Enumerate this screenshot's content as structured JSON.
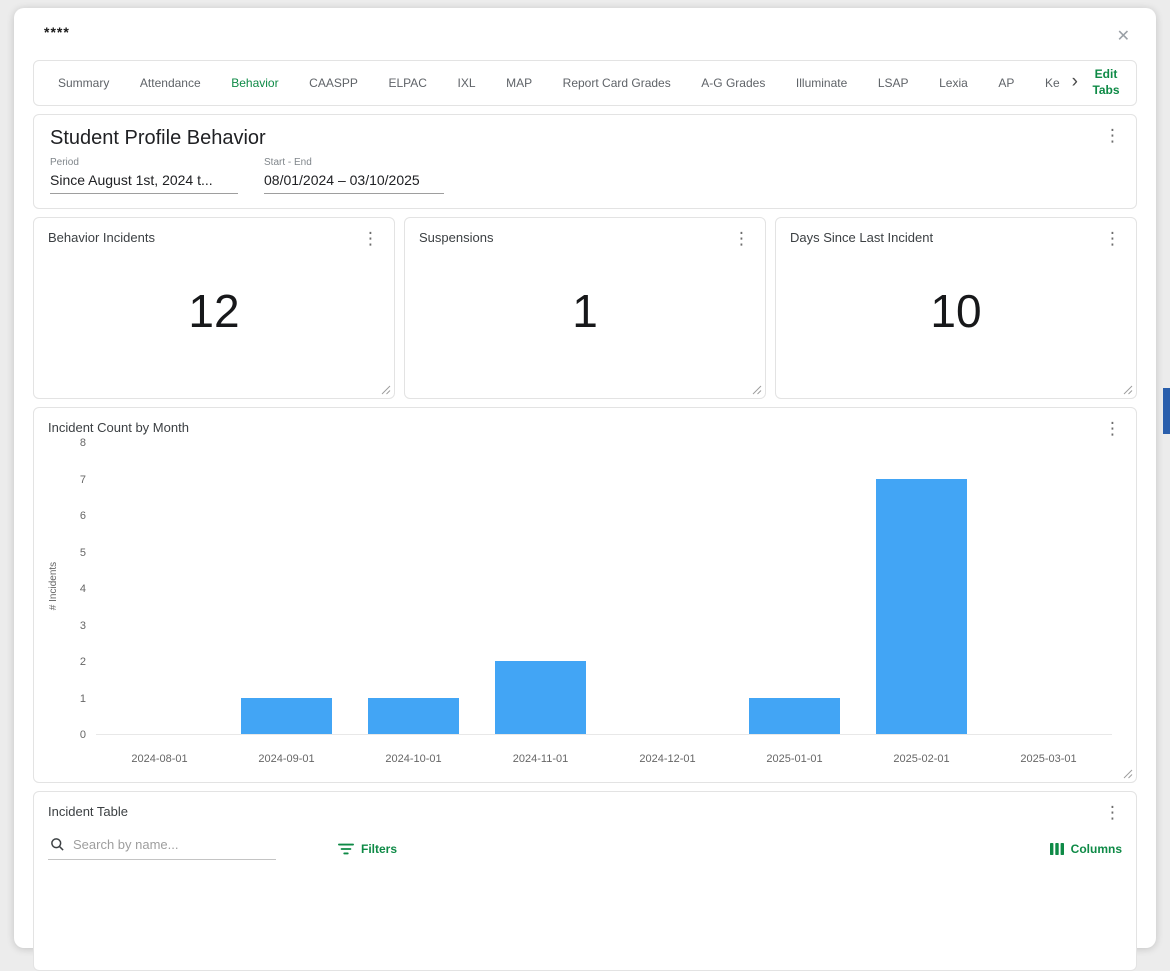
{
  "modal": {
    "title": "****"
  },
  "icons": {
    "kebab": "⋮",
    "close": "✕",
    "chevron_right": "›"
  },
  "colors": {
    "accent_green": "#0e8a46",
    "bar_blue": "#42a5f5",
    "scrollbar_blue": "#2a5fac"
  },
  "tabs": {
    "items": [
      "Summary",
      "Attendance",
      "Behavior",
      "CAASPP",
      "ELPAC",
      "IXL",
      "MAP",
      "Report Card Grades",
      "A-G Grades",
      "Illuminate",
      "LSAP",
      "Lexia",
      "AP",
      "Ke"
    ],
    "active": "Behavior",
    "edit_tabs_label": "Edit Tabs"
  },
  "profile_header": {
    "title": "Student Profile Behavior",
    "period_label": "Period",
    "period_value": "Since August 1st, 2024 t...",
    "range_label": "Start - End",
    "range_value": "08/01/2024 – 03/10/2025"
  },
  "kpis": [
    {
      "title": "Behavior Incidents",
      "value": "12"
    },
    {
      "title": "Suspensions",
      "value": "1"
    },
    {
      "title": "Days Since Last Incident",
      "value": "10"
    }
  ],
  "chart_data": {
    "type": "bar",
    "title": "Incident Count by Month",
    "categories": [
      "2024-08-01",
      "2024-09-01",
      "2024-10-01",
      "2024-11-01",
      "2024-12-01",
      "2025-01-01",
      "2025-02-01",
      "2025-03-01"
    ],
    "values": [
      0,
      1,
      1,
      2,
      0,
      1,
      7,
      0
    ],
    "xlabel": "",
    "ylabel": "# Incidents",
    "ylim": [
      0,
      8
    ],
    "yticks": [
      0,
      1,
      2,
      3,
      4,
      5,
      6,
      7,
      8
    ],
    "grid": false,
    "legend": false,
    "bar_color": "#42a5f5"
  },
  "incident_table": {
    "title": "Incident Table",
    "search_placeholder": "Search by name...",
    "filters_label": "Filters",
    "columns_label": "Columns"
  }
}
